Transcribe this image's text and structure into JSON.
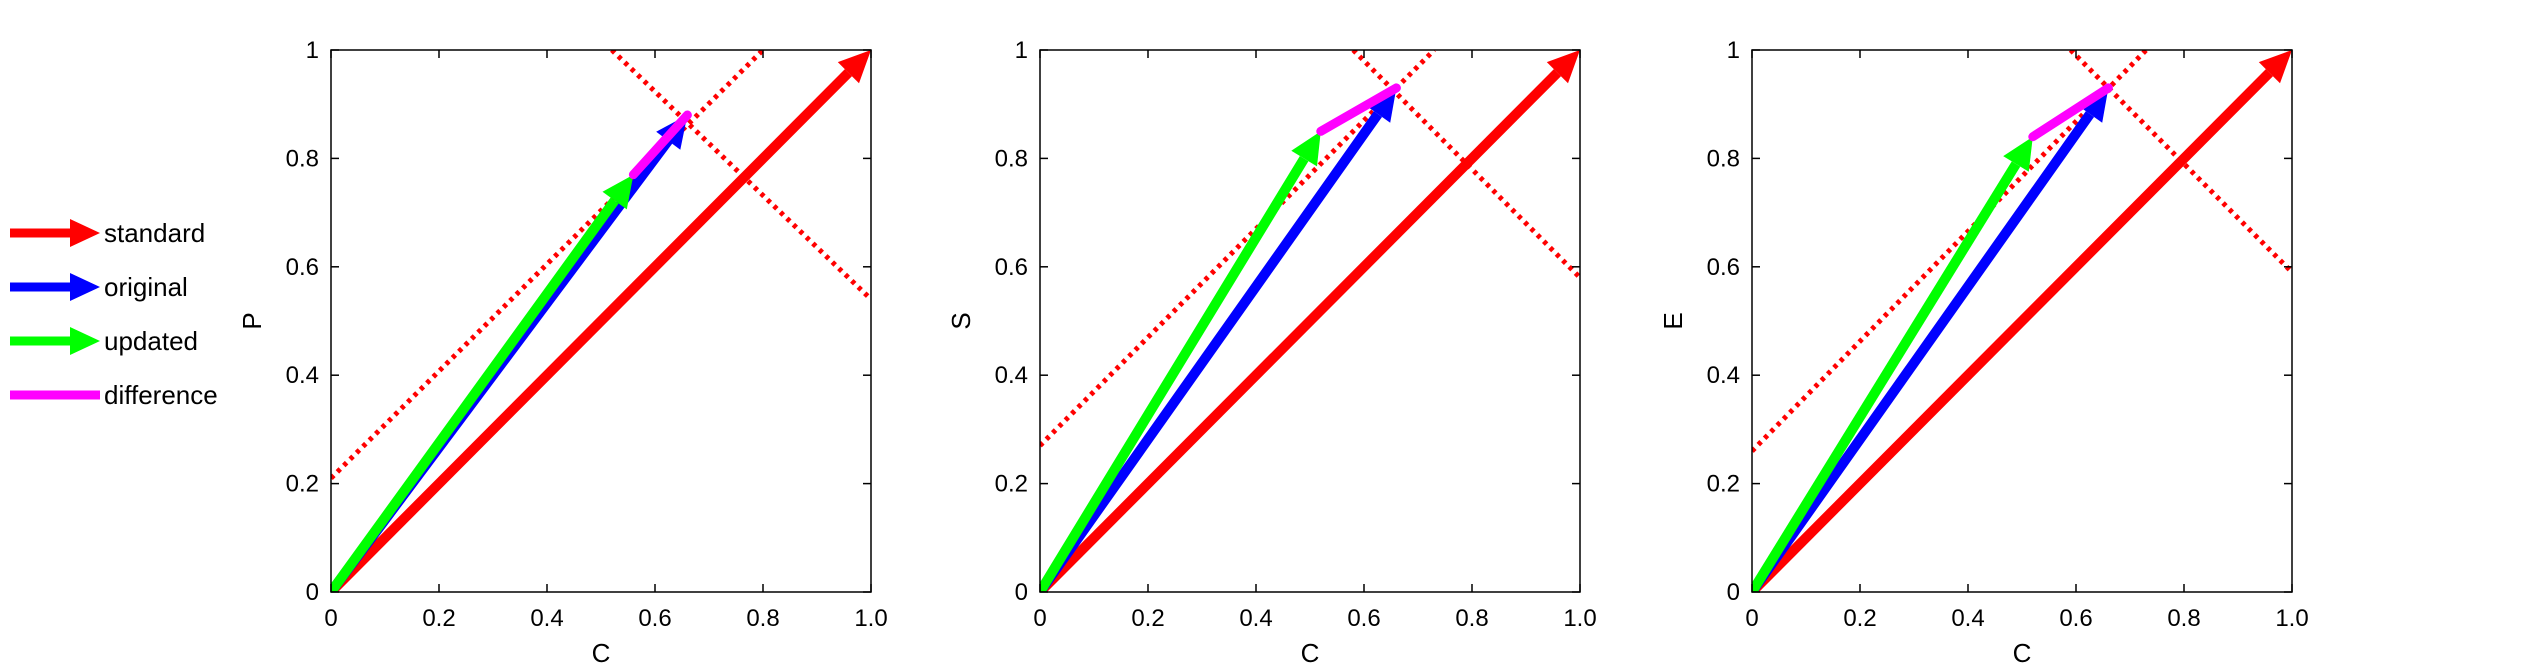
{
  "colors": {
    "standard": "#ff0000",
    "original": "#0000ff",
    "updated": "#00ff00",
    "difference": "#ff00ff",
    "axes": "#000000",
    "background": "#ffffff"
  },
  "legend": {
    "placement": "left",
    "items": [
      {
        "label": "standard",
        "color": "#ff0000",
        "marker": "arrow"
      },
      {
        "label": "original",
        "color": "#0000ff",
        "marker": "arrow"
      },
      {
        "label": "updated",
        "color": "#00ff00",
        "marker": "arrow"
      },
      {
        "label": "difference",
        "color": "#ff00ff",
        "marker": "line"
      }
    ]
  },
  "chart_data": [
    {
      "type": "line",
      "xlabel": "C",
      "ylabel": "P",
      "xlim": [
        0,
        1
      ],
      "ylim": [
        0,
        1
      ],
      "xticks": [
        "0",
        "0.2",
        "0.4",
        "0.6",
        "0.8",
        "1.0"
      ],
      "yticks": [
        "0",
        "0.2",
        "0.4",
        "0.6",
        "0.8",
        "1"
      ],
      "grid": false,
      "vectors": [
        {
          "name": "standard",
          "from": [
            0,
            0
          ],
          "to": [
            1.0,
            1.0
          ]
        },
        {
          "name": "original",
          "from": [
            0,
            0
          ],
          "to": [
            0.66,
            0.88
          ]
        },
        {
          "name": "updated",
          "from": [
            0,
            0
          ],
          "to": [
            0.56,
            0.77
          ]
        }
      ],
      "difference": {
        "from": [
          0.56,
          0.77
        ],
        "to": [
          0.66,
          0.88
        ]
      },
      "dotted_lines": [
        {
          "from": [
            0,
            0.21
          ],
          "to": [
            0.8,
            1.0
          ]
        },
        {
          "from": [
            0.52,
            1.0
          ],
          "to": [
            1.0,
            0.54
          ]
        }
      ]
    },
    {
      "type": "line",
      "xlabel": "C",
      "ylabel": "S",
      "xlim": [
        0,
        1
      ],
      "ylim": [
        0,
        1
      ],
      "xticks": [
        "0",
        "0.2",
        "0.4",
        "0.6",
        "0.8",
        "1.0"
      ],
      "yticks": [
        "0",
        "0.2",
        "0.4",
        "0.6",
        "0.8",
        "1"
      ],
      "grid": false,
      "vectors": [
        {
          "name": "standard",
          "from": [
            0,
            0
          ],
          "to": [
            1.0,
            1.0
          ]
        },
        {
          "name": "original",
          "from": [
            0,
            0
          ],
          "to": [
            0.66,
            0.93
          ]
        },
        {
          "name": "updated",
          "from": [
            0,
            0
          ],
          "to": [
            0.52,
            0.85
          ]
        }
      ],
      "difference": {
        "from": [
          0.52,
          0.85
        ],
        "to": [
          0.66,
          0.93
        ]
      },
      "dotted_lines": [
        {
          "from": [
            0,
            0.27
          ],
          "to": [
            0.73,
            1.0
          ]
        },
        {
          "from": [
            0.58,
            1.0
          ],
          "to": [
            1.0,
            0.58
          ]
        }
      ]
    },
    {
      "type": "line",
      "xlabel": "C",
      "ylabel": "E",
      "xlim": [
        0,
        1
      ],
      "ylim": [
        0,
        1
      ],
      "xticks": [
        "0",
        "0.2",
        "0.4",
        "0.6",
        "0.8",
        "1.0"
      ],
      "yticks": [
        "0",
        "0.2",
        "0.4",
        "0.6",
        "0.8",
        "1"
      ],
      "grid": false,
      "vectors": [
        {
          "name": "standard",
          "from": [
            0,
            0
          ],
          "to": [
            1.0,
            1.0
          ]
        },
        {
          "name": "original",
          "from": [
            0,
            0
          ],
          "to": [
            0.66,
            0.93
          ]
        },
        {
          "name": "updated",
          "from": [
            0,
            0
          ],
          "to": [
            0.52,
            0.84
          ]
        }
      ],
      "difference": {
        "from": [
          0.52,
          0.84
        ],
        "to": [
          0.66,
          0.93
        ]
      },
      "dotted_lines": [
        {
          "from": [
            0,
            0.26
          ],
          "to": [
            0.73,
            1.0
          ]
        },
        {
          "from": [
            0.59,
            1.0
          ],
          "to": [
            1.0,
            0.59
          ]
        }
      ]
    }
  ]
}
